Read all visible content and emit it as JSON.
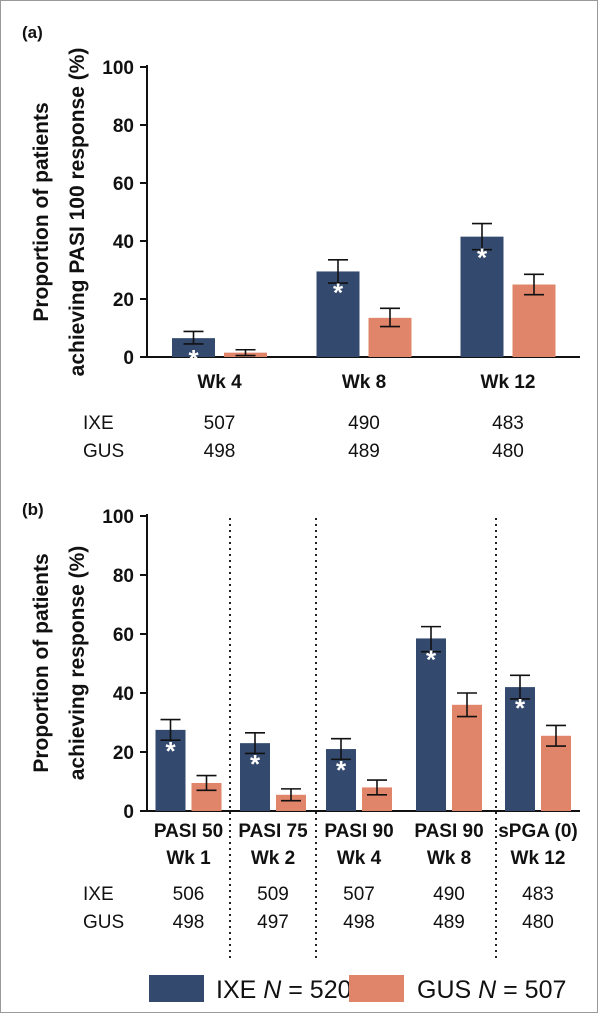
{
  "colors": {
    "ixe": "#33496e",
    "gus": "#e0846a",
    "axis": "#111111"
  },
  "chart_data": [
    {
      "panel_label": "(a)",
      "type": "bar",
      "ylabel_lines": [
        "Proportion of patients",
        "achieving PASI 100 response (%)"
      ],
      "ylim": [
        0,
        100
      ],
      "yticks": [
        "0",
        "20",
        "40",
        "60",
        "80",
        "100"
      ],
      "categories": [
        "Wk 4",
        "Wk 8",
        "Wk 12"
      ],
      "category_lines": [
        [
          "Wk 4"
        ],
        [
          "Wk 8"
        ],
        [
          "Wk 12"
        ]
      ],
      "series": [
        {
          "key": "ixe",
          "values": [
            6.5,
            29.5,
            41.5
          ],
          "err_low": [
            4.5,
            25.5,
            37.0
          ],
          "err_high": [
            8.8,
            33.5,
            46.0
          ],
          "significant": [
            true,
            true,
            true
          ]
        },
        {
          "key": "gus",
          "values": [
            1.5,
            13.5,
            25.0
          ],
          "err_low": [
            0.5,
            10.5,
            21.5
          ],
          "err_high": [
            2.5,
            16.8,
            28.5
          ],
          "significant": [
            false,
            false,
            false
          ]
        }
      ],
      "n_table": {
        "row_labels": [
          "IXE",
          "GUS"
        ],
        "rows": [
          [
            "507",
            "490",
            "483"
          ],
          [
            "498",
            "489",
            "480"
          ]
        ]
      },
      "dividers": false
    },
    {
      "panel_label": "(b)",
      "type": "bar",
      "ylabel_lines": [
        "Proportion of patients",
        "achieving response (%)"
      ],
      "ylim": [
        0,
        100
      ],
      "yticks": [
        "0",
        "20",
        "40",
        "60",
        "80",
        "100"
      ],
      "categories": [
        "PASI 50 Wk 1",
        "PASI 75 Wk 2",
        "PASI 90 Wk 4",
        "PASI 90 Wk 8",
        "sPGA (0) Wk 12"
      ],
      "category_lines": [
        [
          "PASI 50",
          "Wk 1"
        ],
        [
          "PASI 75",
          "Wk 2"
        ],
        [
          "PASI 90",
          "Wk 4"
        ],
        [
          "PASI 90",
          "Wk 8"
        ],
        [
          "sPGA (0)",
          "Wk 12"
        ]
      ],
      "series": [
        {
          "key": "ixe",
          "values": [
            27.5,
            23.0,
            21.0,
            58.5,
            42.0
          ],
          "err_low": [
            24.0,
            19.5,
            17.5,
            54.0,
            38.0
          ],
          "err_high": [
            31.0,
            26.5,
            24.5,
            62.5,
            46.0
          ],
          "significant": [
            true,
            true,
            true,
            true,
            true
          ]
        },
        {
          "key": "gus",
          "values": [
            9.5,
            5.5,
            8.0,
            36.0,
            25.5
          ],
          "err_low": [
            7.0,
            3.5,
            5.5,
            32.0,
            22.0
          ],
          "err_high": [
            12.0,
            7.5,
            10.5,
            40.0,
            29.0
          ],
          "significant": [
            false,
            false,
            false,
            false,
            false
          ]
        }
      ],
      "n_table": {
        "row_labels": [
          "IXE",
          "GUS"
        ],
        "rows": [
          [
            "506",
            "509",
            "507",
            "490",
            "483"
          ],
          [
            "498",
            "497",
            "498",
            "489",
            "480"
          ]
        ]
      },
      "dividers": true
    }
  ],
  "legend": [
    {
      "key": "ixe",
      "prefix": "IXE ",
      "n_italic": "N",
      "suffix": " = 520"
    },
    {
      "key": "gus",
      "prefix": "GUS ",
      "n_italic": "N",
      "suffix": " = 507"
    }
  ],
  "significance_marker": "*"
}
